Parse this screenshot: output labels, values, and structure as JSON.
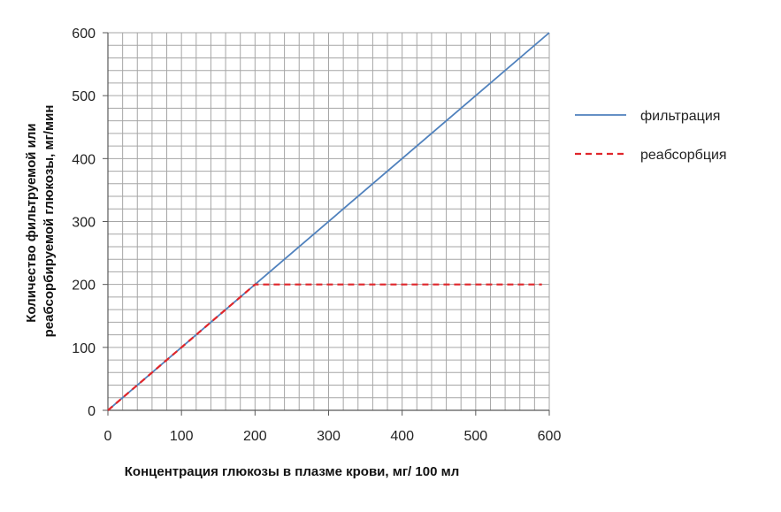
{
  "chart_data": {
    "type": "line",
    "title": "",
    "xlabel": "Концентрация глюкозы в плазме крови, мг/ 100 мл",
    "ylabel_lines": [
      "Количество фильтруемой или",
      "реабсорбируемой глюкозы, мг/мин"
    ],
    "xlim": [
      0,
      600
    ],
    "ylim": [
      0,
      600
    ],
    "x_ticks": [
      0,
      100,
      200,
      300,
      400,
      500,
      600
    ],
    "y_ticks": [
      0,
      100,
      200,
      300,
      400,
      500,
      600
    ],
    "x_minor_step": 20,
    "y_minor_step": 20,
    "grid": true,
    "legend_position": "right",
    "series": [
      {
        "name": "фильтрация",
        "color": "#4f81bd",
        "dash": "solid",
        "x": [
          0,
          600
        ],
        "y": [
          0,
          600
        ]
      },
      {
        "name": "реабсорбция",
        "color": "#e0262b",
        "dash": "dashed",
        "x": [
          0,
          200,
          590
        ],
        "y": [
          0,
          200,
          200
        ]
      }
    ]
  }
}
